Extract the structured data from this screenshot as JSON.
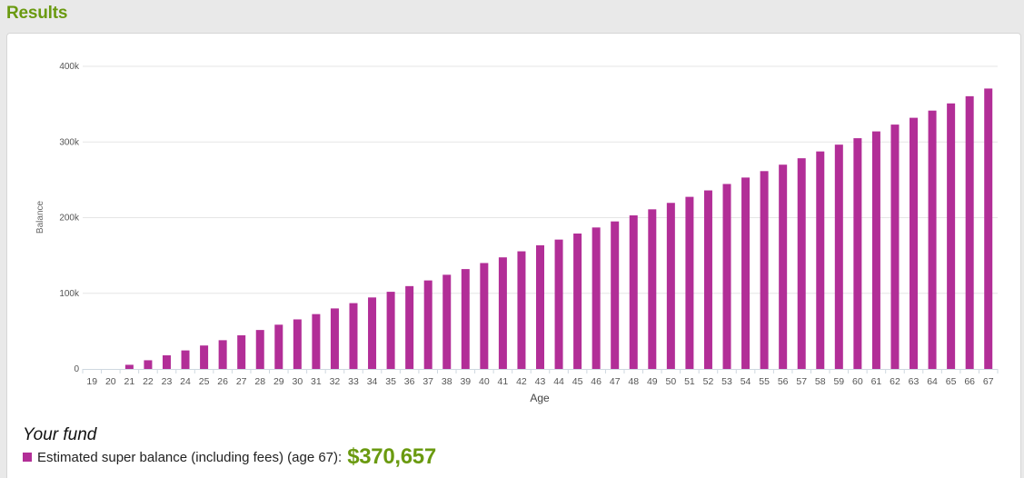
{
  "header": {
    "title": "Results"
  },
  "colors": {
    "accent": "#6a9a10",
    "bar": "#b22e97",
    "grid": "#e6e6e6"
  },
  "summary": {
    "heading": "Your fund",
    "legend_label": "Estimated super balance (including fees) (age 67):",
    "value": "$370,657"
  },
  "chart_data": {
    "type": "bar",
    "xlabel": "Age",
    "ylabel": "Balance",
    "ylim": [
      0,
      400000
    ],
    "y_ticks": [
      {
        "value": 0,
        "label": "0"
      },
      {
        "value": 100000,
        "label": "100k"
      },
      {
        "value": 200000,
        "label": "200k"
      },
      {
        "value": 300000,
        "label": "300k"
      },
      {
        "value": 400000,
        "label": "400k"
      }
    ],
    "grid": true,
    "categories": [
      "19",
      "20",
      "21",
      "22",
      "23",
      "24",
      "25",
      "26",
      "27",
      "28",
      "29",
      "30",
      "31",
      "32",
      "33",
      "34",
      "35",
      "36",
      "37",
      "38",
      "39",
      "40",
      "41",
      "42",
      "43",
      "44",
      "45",
      "46",
      "47",
      "48",
      "49",
      "50",
      "51",
      "52",
      "53",
      "54",
      "55",
      "56",
      "57",
      "58",
      "59",
      "60",
      "61",
      "62",
      "63",
      "64",
      "65",
      "66",
      "67"
    ],
    "series": [
      {
        "values": [
          0,
          0,
          5500,
          11500,
          18000,
          24500,
          31000,
          38000,
          44500,
          51500,
          58500,
          65500,
          72500,
          80000,
          87000,
          94500,
          102000,
          109500,
          117000,
          124500,
          132000,
          140000,
          147500,
          155500,
          163500,
          171000,
          179000,
          187000,
          195000,
          203000,
          211000,
          219500,
          227500,
          236000,
          244500,
          253000,
          261500,
          270000,
          278500,
          287500,
          296500,
          305000,
          314000,
          323000,
          332000,
          341500,
          351000,
          360500,
          370657
        ]
      }
    ]
  }
}
